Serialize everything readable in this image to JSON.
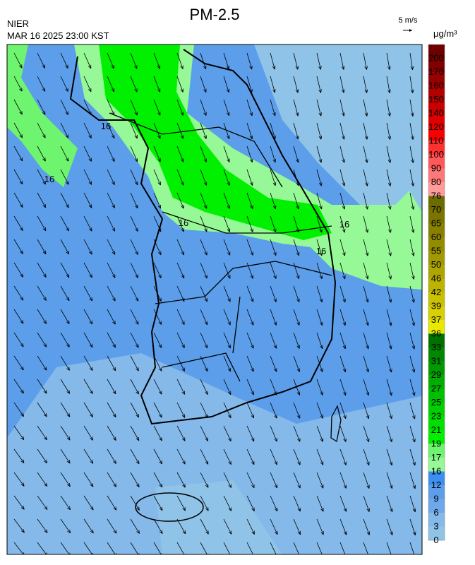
{
  "header": {
    "title": "PM-2.5",
    "agency": "NIER",
    "datetime": "MAR 16 2025 23:00 KST",
    "wind_scale": "5 m/s"
  },
  "colorbar": {
    "unit": "μg/m³",
    "labels": [
      200,
      170,
      160,
      150,
      140,
      120,
      110,
      100,
      90,
      80,
      76,
      70,
      65,
      60,
      55,
      50,
      46,
      42,
      39,
      37,
      36,
      33,
      31,
      29,
      27,
      25,
      23,
      21,
      19,
      17,
      16,
      12,
      9,
      6,
      3,
      0
    ],
    "colors": [
      "#6e0000",
      "#800000",
      "#990000",
      "#b00000",
      "#c80000",
      "#e00000",
      "#f80000",
      "#ff3030",
      "#ff5858",
      "#ff7878",
      "#ff9a9a",
      "#6b6b00",
      "#7a7400",
      "#878000",
      "#948c00",
      "#a19900",
      "#aea600",
      "#bcb400",
      "#cac200",
      "#d8d000",
      "#e8e800",
      "#007000",
      "#008800",
      "#009a00",
      "#00ad00",
      "#00c000",
      "#00d000",
      "#00e000",
      "#00f000",
      "#6ef46e",
      "#96f896",
      "#3c8ef0",
      "#5c9eea",
      "#6fa8e8",
      "#84b9ea",
      "#8fc3e8"
    ]
  },
  "contour_labels": [
    16,
    16,
    16,
    16,
    16
  ]
}
